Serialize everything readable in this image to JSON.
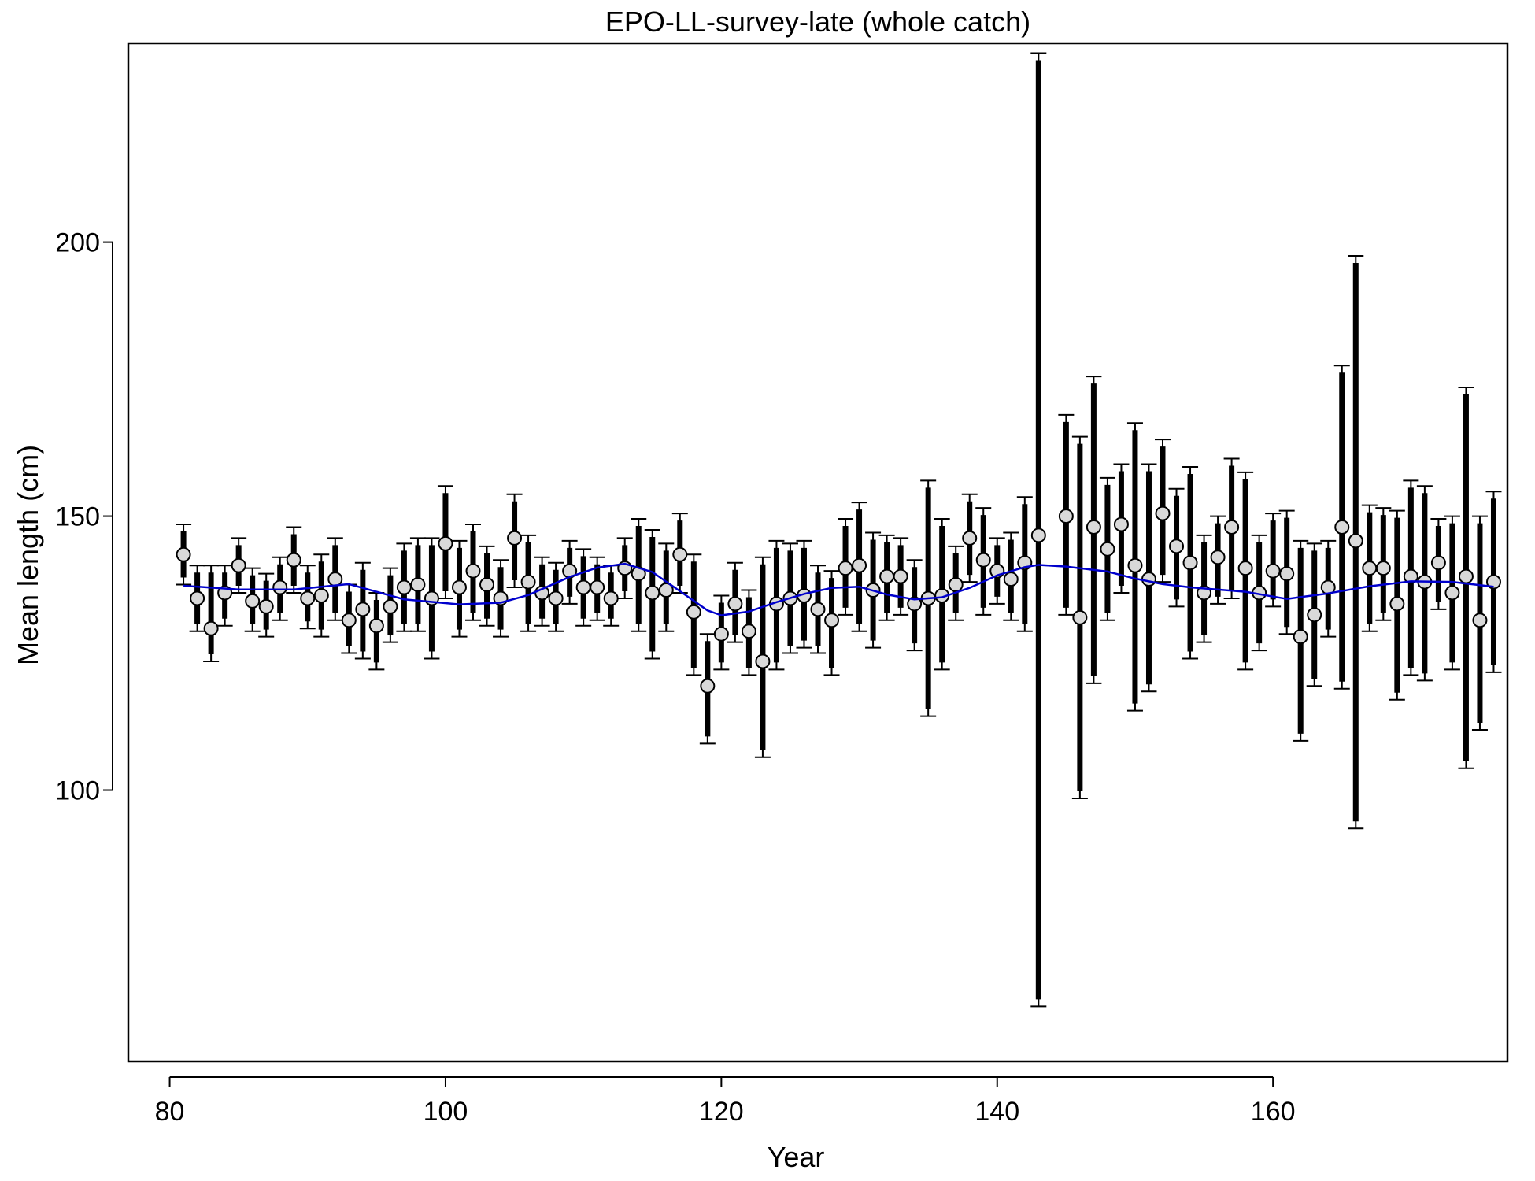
{
  "chart_data": {
    "type": "scatter",
    "title": "EPO-LL-survey-late (whole catch)",
    "xlabel": "Year",
    "ylabel": "Mean length (cm)",
    "xlim": [
      77,
      177
    ],
    "ylim": [
      50.5,
      236.3
    ],
    "xticks": [
      80,
      100,
      120,
      140,
      160
    ],
    "yticks": [
      100,
      150,
      200
    ],
    "grid": false,
    "legend": "none",
    "colors": {
      "points_fill": "#d9d9d9",
      "points_stroke": "#000000",
      "fit_line": "#0000cc",
      "error_bars": "#000000"
    },
    "series": [
      {
        "kind": "observed",
        "x": [
          81,
          82,
          83,
          84,
          85,
          86,
          87,
          88,
          89,
          90,
          91,
          92,
          93,
          94,
          95,
          96,
          97,
          98,
          99,
          100,
          101,
          102,
          103,
          104,
          105,
          106,
          107,
          108,
          109,
          110,
          111,
          112,
          113,
          114,
          115,
          116,
          117,
          118,
          119,
          120,
          121,
          122,
          123,
          124,
          125,
          126,
          127,
          128,
          129,
          130,
          131,
          132,
          133,
          134,
          135,
          136,
          137,
          138,
          139,
          140,
          141,
          142,
          143,
          145,
          146,
          147,
          148,
          149,
          150,
          151,
          152,
          153,
          154,
          155,
          156,
          157,
          158,
          159,
          160,
          161,
          162,
          163,
          164,
          165,
          166,
          167,
          168,
          169,
          170,
          171,
          172,
          173,
          174,
          175,
          176
        ],
        "y": [
          143,
          135,
          129.5,
          136,
          141,
          134.5,
          133.5,
          137,
          142,
          135,
          135.5,
          138.5,
          131,
          133,
          130,
          133.5,
          137,
          137.5,
          135,
          145,
          137,
          140,
          137.5,
          135,
          146,
          138,
          136,
          135,
          140,
          137,
          137,
          135,
          140.5,
          139.5,
          136,
          136.5,
          143,
          132.5,
          119,
          128.5,
          134,
          129,
          123.5,
          134,
          135,
          135.5,
          133,
          131,
          140.5,
          141,
          136.5,
          139,
          139,
          134,
          135,
          135.5,
          137.5,
          146,
          142,
          140,
          138.5,
          141.5,
          146.5,
          150,
          131.5,
          148,
          144,
          148.5,
          141,
          138.5,
          150.5,
          144.5,
          141.5,
          136,
          142.5,
          148,
          140.5,
          136,
          140,
          139.5,
          128,
          132,
          137,
          148,
          145.5,
          140.5,
          140.5,
          134,
          139,
          138,
          141.5,
          136,
          139,
          131,
          138
        ],
        "lower": [
          137.5,
          129,
          123.5,
          130,
          136,
          129,
          128,
          131,
          136,
          129.5,
          128,
          131,
          125,
          124,
          122,
          127,
          129,
          129,
          124,
          135,
          128,
          131,
          130,
          128,
          137,
          129,
          130,
          129,
          134,
          130,
          131,
          130,
          135,
          129,
          124,
          129,
          136,
          121,
          108.5,
          122,
          127,
          121,
          106,
          122,
          125,
          126,
          125,
          121,
          132,
          129,
          126,
          131,
          132,
          125.5,
          113.5,
          122,
          131,
          138,
          132,
          134,
          131,
          129,
          60.5,
          132,
          98.5,
          119.5,
          131,
          136,
          114.5,
          118,
          138,
          133.5,
          124,
          127,
          134,
          135,
          122,
          125.5,
          133.5,
          128.5,
          109,
          119,
          128,
          118.5,
          93,
          129,
          131,
          116.5,
          121,
          120,
          133,
          122,
          104,
          111,
          121.5
        ],
        "upper": [
          148.5,
          141,
          141,
          141,
          146,
          140.5,
          139.5,
          142.5,
          148,
          141,
          143,
          146,
          137.5,
          141.5,
          136,
          140.5,
          145,
          146,
          146,
          155.5,
          145.5,
          148.5,
          144.5,
          142,
          154,
          146.5,
          142.5,
          141.5,
          145.5,
          144,
          142.5,
          141,
          146,
          149.5,
          147.5,
          145,
          150.5,
          143,
          128.5,
          135.5,
          141.5,
          136.5,
          142.5,
          145.5,
          145,
          145.5,
          141,
          140,
          149.5,
          152.5,
          147,
          146.5,
          146,
          142,
          156.5,
          149.5,
          144.5,
          154,
          151.5,
          146,
          147,
          153.5,
          234.5,
          168.5,
          164.5,
          175.5,
          157,
          159.5,
          167,
          159.5,
          164,
          155,
          159,
          146.5,
          150,
          160.5,
          158,
          146.5,
          150.5,
          151,
          145.5,
          145,
          145.5,
          177.5,
          197.5,
          152,
          151.5,
          151,
          156.5,
          155.5,
          149.5,
          150,
          173.5,
          150,
          154.5
        ]
      },
      {
        "kind": "expected",
        "x": [
          81,
          85,
          89,
          93,
          97,
          101,
          104,
          106,
          109,
          111,
          113,
          115,
          117,
          119,
          120,
          122,
          124,
          126,
          128,
          130,
          132,
          134,
          136,
          138,
          140,
          142,
          143,
          145,
          148,
          150,
          152,
          154,
          158,
          161,
          164,
          167,
          170,
          173,
          176
        ],
        "y": [
          137.3,
          136.6,
          136.6,
          137.6,
          134.8,
          133.9,
          134.2,
          135.6,
          138.9,
          140.6,
          141.3,
          139.8,
          136.3,
          132.8,
          131.9,
          132.6,
          134.3,
          135.8,
          136.9,
          137.1,
          135.7,
          134.8,
          135.2,
          136.9,
          139.2,
          140.7,
          141.1,
          140.8,
          139.9,
          138.6,
          137.6,
          137.0,
          136.2,
          134.9,
          135.9,
          137.2,
          138.1,
          138.0,
          137.1
        ]
      }
    ]
  }
}
